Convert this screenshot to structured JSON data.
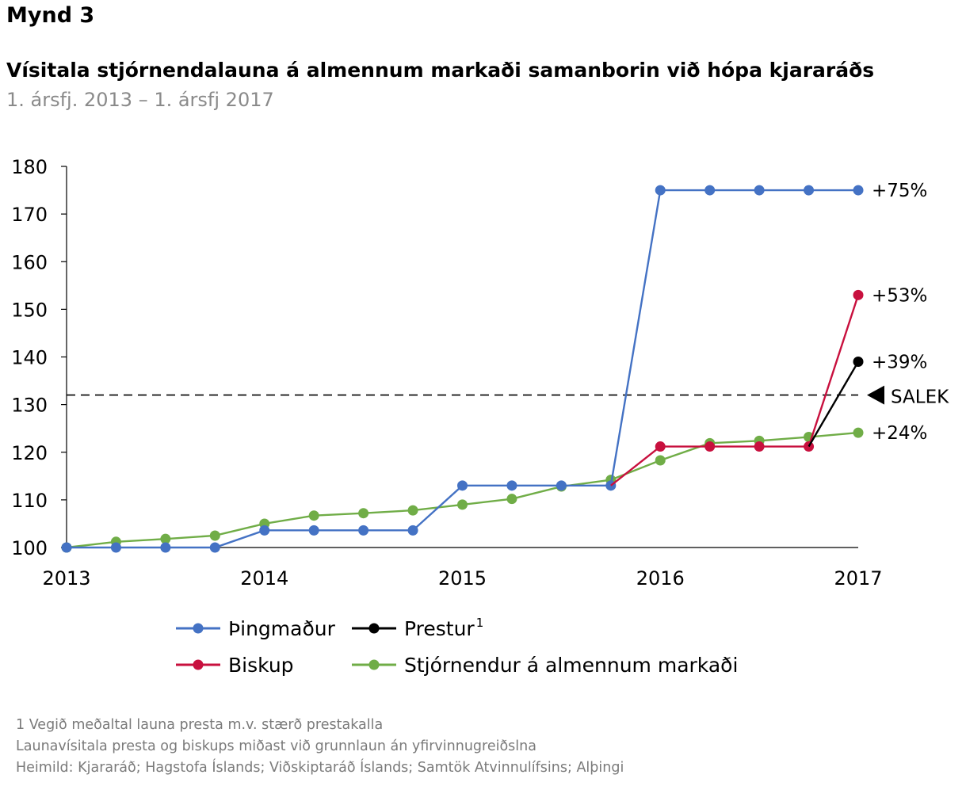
{
  "figure_label": "Mynd 3",
  "title": "Vísitala stjórnendalauna á almennum markaði samanborin við hópa kjararáðs",
  "subtitle": "1. ársfj. 2013 – 1. ársfj 2017",
  "chart_data": {
    "type": "line",
    "xlim": [
      2013,
      2017
    ],
    "ylim": [
      100,
      180
    ],
    "yticks": [
      100,
      110,
      120,
      130,
      140,
      150,
      160,
      170,
      180
    ],
    "xticks": [
      2013,
      2014,
      2015,
      2016,
      2017
    ],
    "grid": false,
    "legend_position": "bottom",
    "x": [
      2013.0,
      2013.25,
      2013.5,
      2013.75,
      2014.0,
      2014.25,
      2014.5,
      2014.75,
      2015.0,
      2015.25,
      2015.5,
      2015.75,
      2016.0,
      2016.25,
      2016.5,
      2016.75,
      2017.0
    ],
    "series": [
      {
        "name": "Þingmaður",
        "color": "#4472c4",
        "values": [
          100,
          100,
          100,
          100,
          103.6,
          103.6,
          103.6,
          103.6,
          113,
          113,
          113,
          113,
          175,
          175,
          175,
          175,
          175
        ],
        "end_label": "+75%"
      },
      {
        "name": "Prestur",
        "name_superscript": "1",
        "color": "#000000",
        "values": [
          null,
          null,
          null,
          null,
          null,
          null,
          null,
          null,
          null,
          null,
          null,
          null,
          null,
          null,
          null,
          121.2,
          139
        ],
        "end_label": "+39%"
      },
      {
        "name": "Biskup",
        "color": "#c8103e",
        "values": [
          null,
          null,
          null,
          null,
          null,
          null,
          null,
          null,
          null,
          null,
          null,
          113,
          121.2,
          121.2,
          121.2,
          121.2,
          153
        ],
        "end_label": "+53%"
      },
      {
        "name": "Stjórnendur á almennum markaði",
        "color": "#70ad47",
        "values": [
          100,
          101.2,
          101.8,
          102.5,
          105,
          106.7,
          107.2,
          107.8,
          109,
          110.2,
          112.8,
          114.2,
          118.3,
          121.9,
          122.4,
          123.2,
          124.1
        ],
        "end_label": "+24%"
      }
    ],
    "reference_line": {
      "value": 132,
      "label": "SALEK",
      "style": "dashed"
    }
  },
  "footnotes": [
    "1 Vegið meðaltal launa presta m.v. stærð prestakalla",
    "Launavísitala presta og biskups miðast við grunnlaun án yfirvinnugreiðslna",
    "Heimild: Kjararáð; Hagstofa Íslands; Viðskiptaráð Íslands; Samtök Atvinnulífsins; Alþingi"
  ]
}
